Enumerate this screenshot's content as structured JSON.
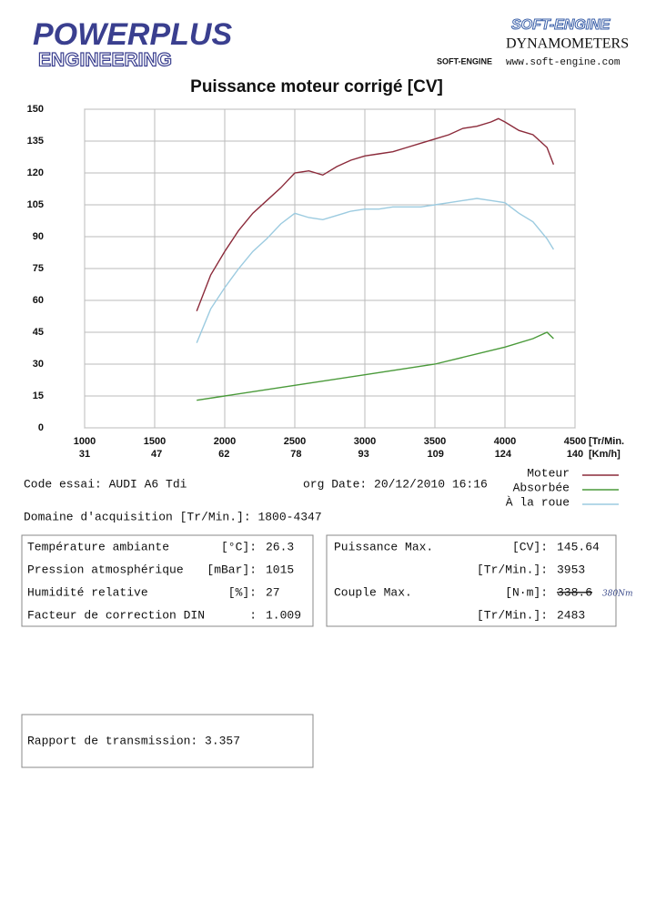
{
  "header": {
    "brand": "POWERPLUS",
    "brand_sub": "ENGINEERING",
    "logo": "SOFT-ENGINE",
    "logo_sub": "DYNAMOMETERS",
    "logo_badge": "SOFT-ENGINE",
    "url": "www.soft-engine.com"
  },
  "chart_data": {
    "type": "line",
    "title": "Puissance moteur corrigé [CV]",
    "x_label": "[Tr/Min.",
    "x2_label": "[Km/h]",
    "xlim": [
      1000,
      4500
    ],
    "xticks": [
      1000,
      1500,
      2000,
      2500,
      3000,
      3500,
      4000,
      4500
    ],
    "x2lim": [
      31,
      140
    ],
    "x2ticks": [
      31,
      47,
      62,
      78,
      93,
      109,
      124,
      140
    ],
    "ylim": [
      0,
      150
    ],
    "yticks": [
      0,
      15,
      30,
      45,
      60,
      75,
      90,
      105,
      120,
      135,
      150
    ],
    "grid": true,
    "series": [
      {
        "name": "Moteur",
        "color": "#8b2a3a",
        "x": [
          1800,
          1900,
          2000,
          2100,
          2200,
          2300,
          2400,
          2500,
          2600,
          2700,
          2800,
          2900,
          3000,
          3100,
          3200,
          3300,
          3400,
          3500,
          3600,
          3700,
          3800,
          3900,
          3953,
          4000,
          4100,
          4200,
          4300,
          4347
        ],
        "values": [
          55,
          72,
          83,
          93,
          101,
          107,
          113,
          120,
          121,
          119,
          123,
          126,
          128,
          129,
          130,
          132,
          134,
          136,
          138,
          141,
          142,
          144,
          145.6,
          144,
          140,
          138,
          132,
          124
        ]
      },
      {
        "name": "Absorbée",
        "color": "#4a9a3a",
        "x": [
          1800,
          2000,
          2500,
          3000,
          3500,
          4000,
          4200,
          4300,
          4347
        ],
        "values": [
          13,
          15,
          20,
          25,
          30,
          38,
          42,
          45,
          42
        ]
      },
      {
        "name": "À la roue",
        "color": "#9ccbe0",
        "x": [
          1800,
          1900,
          2000,
          2100,
          2200,
          2300,
          2400,
          2500,
          2600,
          2700,
          2800,
          2900,
          3000,
          3100,
          3200,
          3300,
          3400,
          3500,
          3600,
          3700,
          3800,
          3900,
          4000,
          4100,
          4200,
          4300,
          4347
        ],
        "values": [
          40,
          56,
          66,
          75,
          83,
          89,
          96,
          101,
          99,
          98,
          100,
          102,
          103,
          103,
          104,
          104,
          104,
          105,
          106,
          107,
          108,
          107,
          106,
          101,
          97,
          89,
          84
        ]
      }
    ]
  },
  "info": {
    "code": "Code essai: AUDI A6 Tdi",
    "date": "org  Date: 20/12/2010 16:16",
    "domain": "Domaine d'acquisition [Tr/Min.]: 1800-4347",
    "conditions": [
      {
        "label": "Température ambiante",
        "unit": "[°C]:",
        "value": "26.3"
      },
      {
        "label": "Pression atmosphérique",
        "unit": "[mBar]:",
        "value": "1015"
      },
      {
        "label": "Humidité relative",
        "unit": "[%]:",
        "value": "27"
      },
      {
        "label": "Facteur de correction DIN",
        "unit": ":",
        "value": "1.009"
      }
    ],
    "results": [
      {
        "label": "Puissance Max.",
        "unit": "[CV]:",
        "value": "145.64"
      },
      {
        "unit": "[Tr/Min.]:",
        "value": "3953"
      },
      {
        "label": "Couple Max.",
        "unit": "[N·m]:",
        "value": "338.6"
      },
      {
        "unit": "[Tr/Min.]:",
        "value": "2483"
      }
    ],
    "handwritten": "380Nm",
    "transmission": "Rapport de transmission: 3.357"
  }
}
